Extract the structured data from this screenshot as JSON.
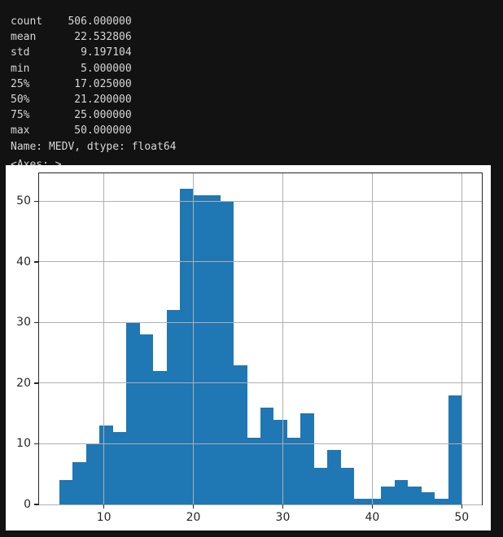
{
  "console": {
    "lines": [
      "count    506.000000",
      "mean      22.532806",
      "std        9.197104",
      "min        5.000000",
      "25%       17.025000",
      "50%       21.200000",
      "75%       25.000000",
      "max       50.000000",
      "Name: MEDV, dtype: float64"
    ],
    "axes_repr": "<Axes: >",
    "fg_color": "#d6d6d6",
    "bg_color": "#121212"
  },
  "chart_data": {
    "type": "bar",
    "subtype": "histogram",
    "series_name": "MEDV",
    "title": "",
    "xlabel": "",
    "ylabel": "",
    "bin_start": 5.0,
    "bin_width": 1.5,
    "bin_edges": [
      5.0,
      6.5,
      8.0,
      9.5,
      11.0,
      12.5,
      14.0,
      15.5,
      17.0,
      18.5,
      20.0,
      21.5,
      23.0,
      24.5,
      26.0,
      27.5,
      29.0,
      30.5,
      32.0,
      33.5,
      35.0,
      36.5,
      38.0,
      39.5,
      41.0,
      42.5,
      44.0,
      45.5,
      47.0,
      48.5,
      50.0
    ],
    "counts": [
      4,
      7,
      10,
      13,
      12,
      30,
      28,
      22,
      32,
      52,
      51,
      51,
      50,
      23,
      11,
      16,
      14,
      11,
      15,
      6,
      9,
      6,
      1,
      1,
      3,
      4,
      3,
      2,
      1,
      18
    ],
    "total_count": 506,
    "xticks": [
      10,
      20,
      30,
      40,
      50
    ],
    "yticks": [
      0,
      10,
      20,
      30,
      40,
      50
    ],
    "xlim": [
      2.75,
      52.25
    ],
    "ylim": [
      0,
      54.6
    ],
    "grid": true,
    "grid_above_bars": true,
    "grid_color": "#b0b0b0",
    "bar_color": "#1f77b4",
    "axes_bg": "#ffffff",
    "spine_color": "#262626",
    "tick_color": "#262626",
    "legend": null
  }
}
